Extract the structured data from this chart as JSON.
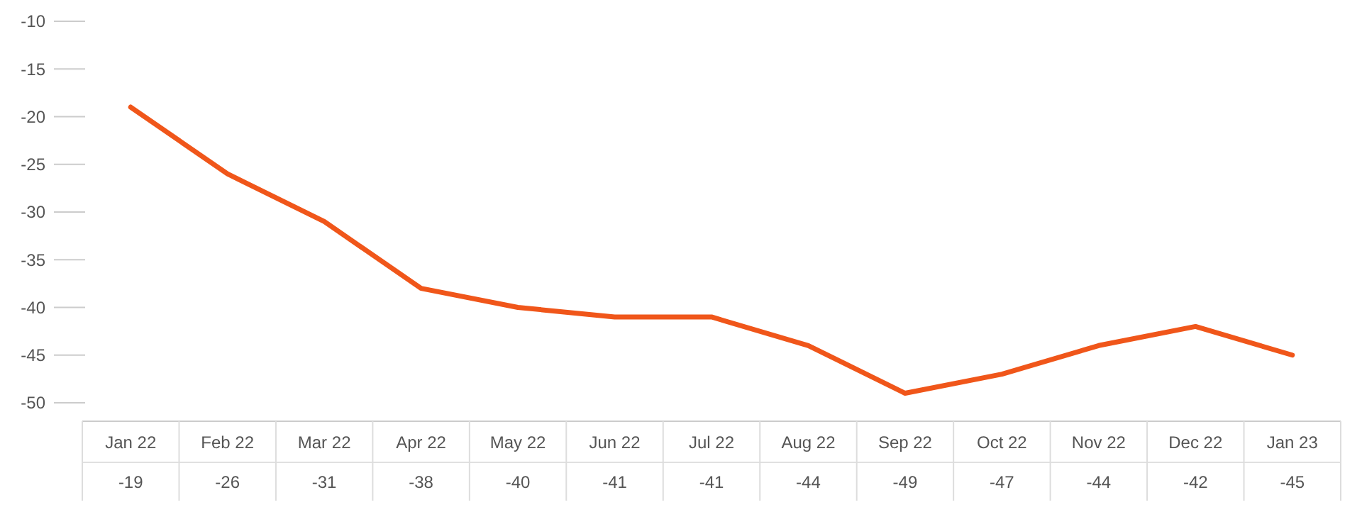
{
  "chart_data": {
    "type": "line",
    "categories": [
      "Jan 22",
      "Feb 22",
      "Mar 22",
      "Apr 22",
      "May 22",
      "Jun 22",
      "Jul 22",
      "Aug 22",
      "Sep 22",
      "Oct 22",
      "Nov 22",
      "Dec 22",
      "Jan 23"
    ],
    "values": [
      -19,
      -26,
      -31,
      -38,
      -40,
      -41,
      -41,
      -44,
      -49,
      -47,
      -44,
      -42,
      -45
    ],
    "color": "#f0561a",
    "ylim": [
      -50,
      -10
    ],
    "yticks": [
      -50,
      -45,
      -40,
      -35,
      -30,
      -25,
      -20,
      -15,
      -10
    ],
    "data_labels": true
  }
}
